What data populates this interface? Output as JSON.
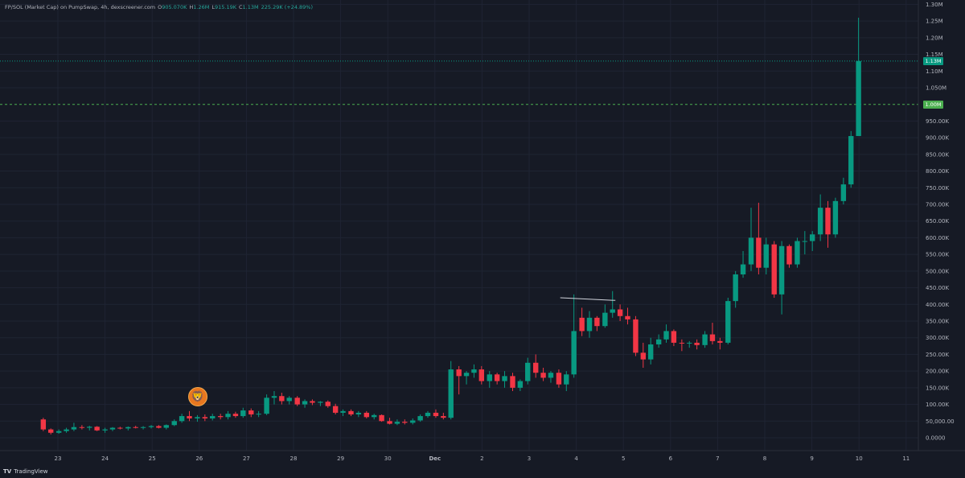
{
  "header": {
    "title": "FP/SOL (Market Cap) on PumpSwap, 4h, dexscreener.com",
    "ohlc": [
      {
        "label": "O",
        "value": "905.070K"
      },
      {
        "label": "H",
        "value": "1.26M"
      },
      {
        "label": "L",
        "value": "915.19K"
      },
      {
        "label": "C",
        "value": "1.13M"
      }
    ],
    "change": "225.29K (+24.89%)"
  },
  "brand": {
    "name": "TradingView",
    "logo": "TV"
  },
  "price_tags": [
    {
      "label": "1.13M",
      "value": 1130000,
      "color": "#089981"
    },
    {
      "label": "1.00M",
      "value": 1000000,
      "color": "#4caf50"
    }
  ],
  "colors": {
    "up": "#089981",
    "down": "#f23645",
    "background": "#161a25",
    "grid": "#1f2433",
    "text": "#b2b5be"
  },
  "marker": {
    "icon": "lion-avatar-icon",
    "glyph": "🦁",
    "date": "26"
  },
  "chart_data": {
    "type": "candlestick",
    "title": "",
    "xlabel": "",
    "ylabel": "",
    "ylim": [
      -20000,
      1300000
    ],
    "grid": true,
    "y_ticks": [
      {
        "label": "1.30M",
        "value": 1300000
      },
      {
        "label": "1.25M",
        "value": 1250000
      },
      {
        "label": "1.20M",
        "value": 1200000
      },
      {
        "label": "1.15M",
        "value": 1150000
      },
      {
        "label": "1.10M",
        "value": 1100000
      },
      {
        "label": "1.050M",
        "value": 1050000
      },
      {
        "label": "950.00K",
        "value": 950000
      },
      {
        "label": "900.00K",
        "value": 900000
      },
      {
        "label": "850.00K",
        "value": 850000
      },
      {
        "label": "800.00K",
        "value": 800000
      },
      {
        "label": "750.00K",
        "value": 750000
      },
      {
        "label": "700.00K",
        "value": 700000
      },
      {
        "label": "650.00K",
        "value": 650000
      },
      {
        "label": "600.00K",
        "value": 600000
      },
      {
        "label": "550.00K",
        "value": 550000
      },
      {
        "label": "500.00K",
        "value": 500000
      },
      {
        "label": "450.00K",
        "value": 450000
      },
      {
        "label": "400.00K",
        "value": 400000
      },
      {
        "label": "350.00K",
        "value": 350000
      },
      {
        "label": "300.00K",
        "value": 300000
      },
      {
        "label": "250.00K",
        "value": 250000
      },
      {
        "label": "200.00K",
        "value": 200000
      },
      {
        "label": "150.00K",
        "value": 150000
      },
      {
        "label": "100.00K",
        "value": 100000
      },
      {
        "label": "50,000.00",
        "value": 50000
      },
      {
        "label": "0.0000",
        "value": 0
      }
    ],
    "x_ticks": [
      {
        "label": "23",
        "t": 0
      },
      {
        "label": "24",
        "t": 1
      },
      {
        "label": "25",
        "t": 2
      },
      {
        "label": "26",
        "t": 3
      },
      {
        "label": "27",
        "t": 4
      },
      {
        "label": "28",
        "t": 5
      },
      {
        "label": "29",
        "t": 6
      },
      {
        "label": "30",
        "t": 7
      },
      {
        "label": "Dec",
        "t": 8,
        "bold": true
      },
      {
        "label": "2",
        "t": 9
      },
      {
        "label": "3",
        "t": 10
      },
      {
        "label": "4",
        "t": 11
      },
      {
        "label": "5",
        "t": 12
      },
      {
        "label": "6",
        "t": 13
      },
      {
        "label": "7",
        "t": 14
      },
      {
        "label": "8",
        "t": 15
      },
      {
        "label": "9",
        "t": 16
      },
      {
        "label": "10",
        "t": 17
      },
      {
        "label": "11",
        "t": 18
      }
    ],
    "hlines": [
      {
        "value": 1130000,
        "style": "dotted",
        "color": "#089981"
      },
      {
        "value": 1000000,
        "style": "dashed",
        "color": "#4caf50"
      }
    ],
    "trendline": {
      "t1": 10.66,
      "v1": 420000,
      "t2": 11.83,
      "v2": 412000,
      "color": "#d1d4dc"
    },
    "candles": [
      {
        "t": -0.31,
        "o": 55000,
        "h": 60000,
        "l": 20000,
        "c": 25000
      },
      {
        "t": -0.15,
        "o": 25000,
        "h": 28000,
        "l": 10000,
        "c": 15000
      },
      {
        "t": 0.02,
        "o": 15000,
        "h": 25000,
        "l": 12000,
        "c": 20000
      },
      {
        "t": 0.18,
        "o": 20000,
        "h": 30000,
        "l": 15000,
        "c": 25000
      },
      {
        "t": 0.34,
        "o": 25000,
        "h": 45000,
        "l": 20000,
        "c": 32000
      },
      {
        "t": 0.51,
        "o": 32000,
        "h": 38000,
        "l": 25000,
        "c": 30000
      },
      {
        "t": 0.67,
        "o": 30000,
        "h": 36000,
        "l": 22000,
        "c": 33000
      },
      {
        "t": 0.83,
        "o": 33000,
        "h": 35000,
        "l": 20000,
        "c": 22000
      },
      {
        "t": 1.0,
        "o": 22000,
        "h": 30000,
        "l": 15000,
        "c": 25000
      },
      {
        "t": 1.16,
        "o": 25000,
        "h": 32000,
        "l": 20000,
        "c": 30000
      },
      {
        "t": 1.32,
        "o": 30000,
        "h": 33000,
        "l": 25000,
        "c": 28000
      },
      {
        "t": 1.49,
        "o": 28000,
        "h": 34000,
        "l": 22000,
        "c": 32000
      },
      {
        "t": 1.65,
        "o": 32000,
        "h": 36000,
        "l": 28000,
        "c": 30000
      },
      {
        "t": 1.81,
        "o": 30000,
        "h": 35000,
        "l": 25000,
        "c": 32000
      },
      {
        "t": 1.98,
        "o": 32000,
        "h": 38000,
        "l": 28000,
        "c": 35000
      },
      {
        "t": 2.14,
        "o": 35000,
        "h": 38000,
        "l": 28000,
        "c": 30000
      },
      {
        "t": 2.3,
        "o": 30000,
        "h": 40000,
        "l": 25000,
        "c": 38000
      },
      {
        "t": 2.47,
        "o": 38000,
        "h": 55000,
        "l": 35000,
        "c": 50000
      },
      {
        "t": 2.63,
        "o": 50000,
        "h": 72000,
        "l": 45000,
        "c": 65000
      },
      {
        "t": 2.79,
        "o": 65000,
        "h": 80000,
        "l": 50000,
        "c": 58000
      },
      {
        "t": 2.96,
        "o": 58000,
        "h": 68000,
        "l": 48000,
        "c": 62000
      },
      {
        "t": 3.12,
        "o": 62000,
        "h": 70000,
        "l": 50000,
        "c": 58000
      },
      {
        "t": 3.28,
        "o": 58000,
        "h": 72000,
        "l": 52000,
        "c": 65000
      },
      {
        "t": 3.45,
        "o": 65000,
        "h": 72000,
        "l": 55000,
        "c": 62000
      },
      {
        "t": 3.61,
        "o": 62000,
        "h": 80000,
        "l": 55000,
        "c": 72000
      },
      {
        "t": 3.77,
        "o": 72000,
        "h": 78000,
        "l": 60000,
        "c": 65000
      },
      {
        "t": 3.93,
        "o": 65000,
        "h": 90000,
        "l": 60000,
        "c": 82000
      },
      {
        "t": 4.1,
        "o": 82000,
        "h": 88000,
        "l": 62000,
        "c": 70000
      },
      {
        "t": 4.26,
        "o": 70000,
        "h": 80000,
        "l": 62000,
        "c": 72000
      },
      {
        "t": 4.43,
        "o": 72000,
        "h": 130000,
        "l": 68000,
        "c": 120000
      },
      {
        "t": 4.59,
        "o": 120000,
        "h": 140000,
        "l": 100000,
        "c": 125000
      },
      {
        "t": 4.75,
        "o": 125000,
        "h": 135000,
        "l": 100000,
        "c": 110000
      },
      {
        "t": 4.91,
        "o": 110000,
        "h": 125000,
        "l": 100000,
        "c": 120000
      },
      {
        "t": 5.08,
        "o": 120000,
        "h": 125000,
        "l": 95000,
        "c": 100000
      },
      {
        "t": 5.24,
        "o": 100000,
        "h": 115000,
        "l": 90000,
        "c": 110000
      },
      {
        "t": 5.4,
        "o": 110000,
        "h": 115000,
        "l": 98000,
        "c": 105000
      },
      {
        "t": 5.57,
        "o": 105000,
        "h": 110000,
        "l": 95000,
        "c": 108000
      },
      {
        "t": 5.73,
        "o": 108000,
        "h": 112000,
        "l": 90000,
        "c": 95000
      },
      {
        "t": 5.89,
        "o": 95000,
        "h": 102000,
        "l": 70000,
        "c": 75000
      },
      {
        "t": 6.05,
        "o": 75000,
        "h": 85000,
        "l": 65000,
        "c": 80000
      },
      {
        "t": 6.22,
        "o": 80000,
        "h": 85000,
        "l": 65000,
        "c": 70000
      },
      {
        "t": 6.38,
        "o": 70000,
        "h": 80000,
        "l": 62000,
        "c": 75000
      },
      {
        "t": 6.55,
        "o": 75000,
        "h": 80000,
        "l": 58000,
        "c": 62000
      },
      {
        "t": 6.71,
        "o": 62000,
        "h": 72000,
        "l": 55000,
        "c": 68000
      },
      {
        "t": 6.87,
        "o": 68000,
        "h": 70000,
        "l": 48000,
        "c": 50000
      },
      {
        "t": 7.04,
        "o": 50000,
        "h": 60000,
        "l": 40000,
        "c": 42000
      },
      {
        "t": 7.2,
        "o": 42000,
        "h": 55000,
        "l": 38000,
        "c": 48000
      },
      {
        "t": 7.36,
        "o": 48000,
        "h": 55000,
        "l": 40000,
        "c": 45000
      },
      {
        "t": 7.53,
        "o": 45000,
        "h": 58000,
        "l": 40000,
        "c": 52000
      },
      {
        "t": 7.69,
        "o": 52000,
        "h": 70000,
        "l": 48000,
        "c": 65000
      },
      {
        "t": 7.85,
        "o": 65000,
        "h": 80000,
        "l": 60000,
        "c": 75000
      },
      {
        "t": 8.02,
        "o": 75000,
        "h": 85000,
        "l": 60000,
        "c": 65000
      },
      {
        "t": 8.18,
        "o": 65000,
        "h": 75000,
        "l": 55000,
        "c": 60000
      },
      {
        "t": 8.34,
        "o": 60000,
        "h": 230000,
        "l": 55000,
        "c": 205000
      },
      {
        "t": 8.51,
        "o": 205000,
        "h": 215000,
        "l": 130000,
        "c": 185000
      },
      {
        "t": 8.67,
        "o": 185000,
        "h": 200000,
        "l": 160000,
        "c": 195000
      },
      {
        "t": 8.83,
        "o": 195000,
        "h": 220000,
        "l": 180000,
        "c": 205000
      },
      {
        "t": 8.99,
        "o": 205000,
        "h": 215000,
        "l": 160000,
        "c": 170000
      },
      {
        "t": 9.16,
        "o": 170000,
        "h": 200000,
        "l": 150000,
        "c": 190000
      },
      {
        "t": 9.32,
        "o": 190000,
        "h": 195000,
        "l": 160000,
        "c": 170000
      },
      {
        "t": 9.48,
        "o": 170000,
        "h": 200000,
        "l": 150000,
        "c": 185000
      },
      {
        "t": 9.65,
        "o": 185000,
        "h": 195000,
        "l": 140000,
        "c": 150000
      },
      {
        "t": 9.81,
        "o": 150000,
        "h": 175000,
        "l": 140000,
        "c": 170000
      },
      {
        "t": 9.97,
        "o": 170000,
        "h": 240000,
        "l": 160000,
        "c": 225000
      },
      {
        "t": 10.14,
        "o": 225000,
        "h": 250000,
        "l": 180000,
        "c": 195000
      },
      {
        "t": 10.3,
        "o": 195000,
        "h": 210000,
        "l": 170000,
        "c": 180000
      },
      {
        "t": 10.46,
        "o": 180000,
        "h": 200000,
        "l": 165000,
        "c": 195000
      },
      {
        "t": 10.63,
        "o": 195000,
        "h": 205000,
        "l": 150000,
        "c": 160000
      },
      {
        "t": 10.79,
        "o": 160000,
        "h": 200000,
        "l": 140000,
        "c": 190000
      },
      {
        "t": 10.95,
        "o": 190000,
        "h": 430000,
        "l": 180000,
        "c": 320000
      },
      {
        "t": 11.12,
        "o": 360000,
        "h": 390000,
        "l": 305000,
        "c": 320000
      },
      {
        "t": 11.28,
        "o": 320000,
        "h": 380000,
        "l": 300000,
        "c": 360000
      },
      {
        "t": 11.44,
        "o": 360000,
        "h": 365000,
        "l": 320000,
        "c": 335000
      },
      {
        "t": 11.61,
        "o": 335000,
        "h": 400000,
        "l": 330000,
        "c": 375000
      },
      {
        "t": 11.77,
        "o": 375000,
        "h": 440000,
        "l": 360000,
        "c": 385000
      },
      {
        "t": 11.93,
        "o": 385000,
        "h": 400000,
        "l": 350000,
        "c": 365000
      },
      {
        "t": 12.09,
        "o": 365000,
        "h": 390000,
        "l": 340000,
        "c": 355000
      },
      {
        "t": 12.26,
        "o": 355000,
        "h": 365000,
        "l": 245000,
        "c": 255000
      },
      {
        "t": 12.42,
        "o": 255000,
        "h": 285000,
        "l": 210000,
        "c": 235000
      },
      {
        "t": 12.58,
        "o": 235000,
        "h": 300000,
        "l": 220000,
        "c": 280000
      },
      {
        "t": 12.75,
        "o": 280000,
        "h": 310000,
        "l": 270000,
        "c": 295000
      },
      {
        "t": 12.91,
        "o": 295000,
        "h": 340000,
        "l": 285000,
        "c": 320000
      },
      {
        "t": 13.07,
        "o": 320000,
        "h": 325000,
        "l": 275000,
        "c": 285000
      },
      {
        "t": 13.24,
        "o": 285000,
        "h": 295000,
        "l": 260000,
        "c": 283000
      },
      {
        "t": 13.4,
        "o": 283000,
        "h": 290000,
        "l": 270000,
        "c": 285000
      },
      {
        "t": 13.56,
        "o": 285000,
        "h": 295000,
        "l": 265000,
        "c": 278000
      },
      {
        "t": 13.73,
        "o": 278000,
        "h": 320000,
        "l": 270000,
        "c": 310000
      },
      {
        "t": 13.89,
        "o": 310000,
        "h": 345000,
        "l": 280000,
        "c": 290000
      },
      {
        "t": 14.05,
        "o": 290000,
        "h": 300000,
        "l": 265000,
        "c": 285000
      },
      {
        "t": 14.22,
        "o": 285000,
        "h": 420000,
        "l": 280000,
        "c": 410000
      },
      {
        "t": 14.38,
        "o": 410000,
        "h": 500000,
        "l": 390000,
        "c": 490000
      },
      {
        "t": 14.54,
        "o": 490000,
        "h": 560000,
        "l": 480000,
        "c": 520000
      },
      {
        "t": 14.71,
        "o": 520000,
        "h": 690000,
        "l": 500000,
        "c": 600000
      },
      {
        "t": 14.87,
        "o": 600000,
        "h": 705000,
        "l": 490000,
        "c": 510000
      },
      {
        "t": 15.03,
        "o": 510000,
        "h": 600000,
        "l": 490000,
        "c": 580000
      },
      {
        "t": 15.2,
        "o": 580000,
        "h": 590000,
        "l": 420000,
        "c": 430000
      },
      {
        "t": 15.36,
        "o": 430000,
        "h": 590000,
        "l": 370000,
        "c": 575000
      },
      {
        "t": 15.52,
        "o": 575000,
        "h": 580000,
        "l": 510000,
        "c": 520000
      },
      {
        "t": 15.69,
        "o": 520000,
        "h": 600000,
        "l": 510000,
        "c": 590000
      },
      {
        "t": 15.85,
        "o": 590000,
        "h": 620000,
        "l": 550000,
        "c": 590000
      },
      {
        "t": 16.01,
        "o": 590000,
        "h": 620000,
        "l": 560000,
        "c": 610000
      },
      {
        "t": 16.18,
        "o": 610000,
        "h": 730000,
        "l": 590000,
        "c": 690000
      },
      {
        "t": 16.34,
        "o": 690000,
        "h": 710000,
        "l": 570000,
        "c": 610000
      },
      {
        "t": 16.5,
        "o": 610000,
        "h": 720000,
        "l": 600000,
        "c": 710000
      },
      {
        "t": 16.67,
        "o": 710000,
        "h": 780000,
        "l": 700000,
        "c": 760000
      },
      {
        "t": 16.83,
        "o": 760000,
        "h": 920000,
        "l": 750000,
        "c": 905000
      },
      {
        "t": 16.99,
        "o": 905000,
        "h": 1260000,
        "l": 915000,
        "c": 1130000
      }
    ]
  }
}
